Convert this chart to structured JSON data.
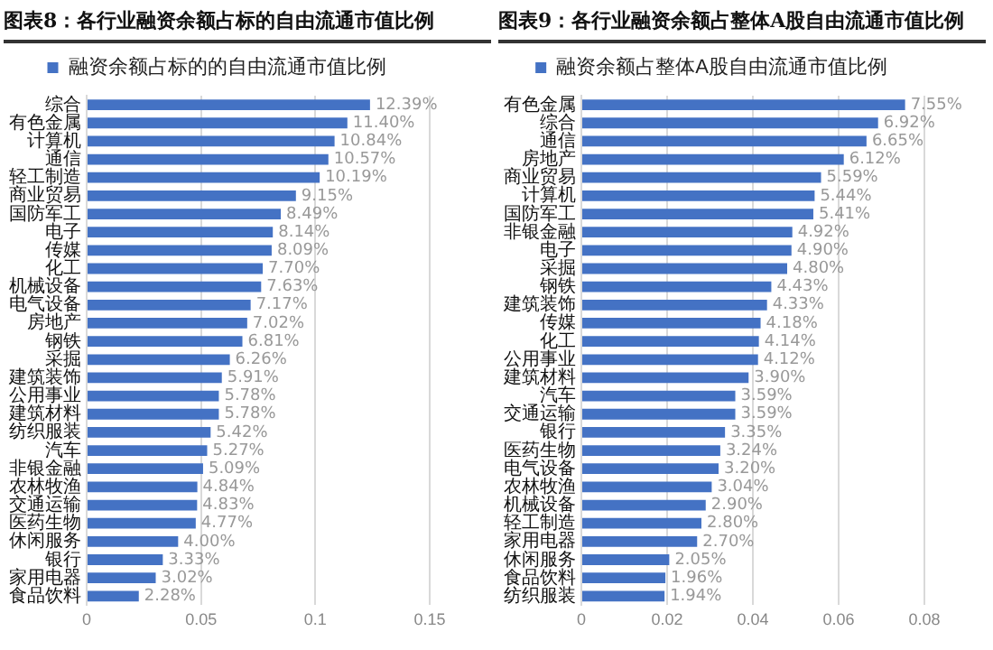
{
  "chart_data": [
    {
      "type": "bar",
      "orientation": "horizontal",
      "title": "图表8：各行业融资余额占标的自由流通市值比例",
      "categories": [
        "综合",
        "有色金属",
        "计算机",
        "通信",
        "轻工制造",
        "商业贸易",
        "国防军工",
        "电子",
        "传媒",
        "化工",
        "机械设备",
        "电气设备",
        "房地产",
        "钢铁",
        "采掘",
        "建筑装饰",
        "公用事业",
        "建筑材料",
        "纺织服装",
        "汽车",
        "非银金融",
        "农林牧渔",
        "交通运输",
        "医药生物",
        "休闲服务",
        "银行",
        "家用电器",
        "食品饮料"
      ],
      "series": [
        {
          "name": "融资余额占标的的自由流通市值比例",
          "color": "#4472c4",
          "values": [
            0.1239,
            0.114,
            0.1084,
            0.1057,
            0.1019,
            0.0915,
            0.0849,
            0.0814,
            0.0809,
            0.077,
            0.0763,
            0.0717,
            0.0702,
            0.0681,
            0.0626,
            0.0591,
            0.0578,
            0.0578,
            0.0542,
            0.0527,
            0.0509,
            0.0484,
            0.0483,
            0.0477,
            0.04,
            0.0333,
            0.0302,
            0.0228
          ],
          "value_labels": [
            "12.39%",
            "11.40%",
            "10.84%",
            "10.57%",
            "10.19%",
            "9.15%",
            "8.49%",
            "8.14%",
            "8.09%",
            "7.70%",
            "7.63%",
            "7.17%",
            "7.02%",
            "6.81%",
            "6.26%",
            "5.91%",
            "5.78%",
            "5.78%",
            "5.42%",
            "5.27%",
            "5.09%",
            "4.84%",
            "4.83%",
            "4.77%",
            "4.00%",
            "3.33%",
            "3.02%",
            "2.28%"
          ]
        }
      ],
      "xlim": [
        0,
        0.15
      ],
      "xticks": [
        0,
        0.05,
        0.1,
        0.15
      ],
      "grid": "x",
      "legend": "top"
    },
    {
      "type": "bar",
      "orientation": "horizontal",
      "title": "图表9：各行业融资余额占整体A股自由流通市值比例",
      "categories": [
        "有色金属",
        "综合",
        "通信",
        "房地产",
        "商业贸易",
        "计算机",
        "国防军工",
        "非银金融",
        "电子",
        "采掘",
        "钢铁",
        "建筑装饰",
        "传媒",
        "化工",
        "公用事业",
        "建筑材料",
        "汽车",
        "交通运输",
        "银行",
        "医药生物",
        "电气设备",
        "农林牧渔",
        "机械设备",
        "轻工制造",
        "家用电器",
        "休闲服务",
        "食品饮料",
        "纺织服装"
      ],
      "series": [
        {
          "name": "融资余额占整体A股自由流通市值比例",
          "color": "#4472c4",
          "values": [
            0.0755,
            0.0692,
            0.0665,
            0.0612,
            0.0559,
            0.0544,
            0.0541,
            0.0492,
            0.049,
            0.048,
            0.0443,
            0.0433,
            0.0418,
            0.0414,
            0.0412,
            0.039,
            0.0359,
            0.0359,
            0.0335,
            0.0324,
            0.032,
            0.0304,
            0.029,
            0.028,
            0.027,
            0.0205,
            0.0196,
            0.0194
          ],
          "value_labels": [
            "7.55%",
            "6.92%",
            "6.65%",
            "6.12%",
            "5.59%",
            "5.44%",
            "5.41%",
            "4.92%",
            "4.90%",
            "4.80%",
            "4.43%",
            "4.33%",
            "4.18%",
            "4.14%",
            "4.12%",
            "3.90%",
            "3.59%",
            "3.59%",
            "3.35%",
            "3.24%",
            "3.20%",
            "3.04%",
            "2.90%",
            "2.80%",
            "2.70%",
            "2.05%",
            "1.96%",
            "1.94%"
          ]
        }
      ],
      "xlim": [
        0,
        0.08
      ],
      "xticks": [
        0,
        0.02,
        0.04,
        0.06,
        0.08
      ],
      "grid": "x",
      "legend": "top"
    }
  ]
}
